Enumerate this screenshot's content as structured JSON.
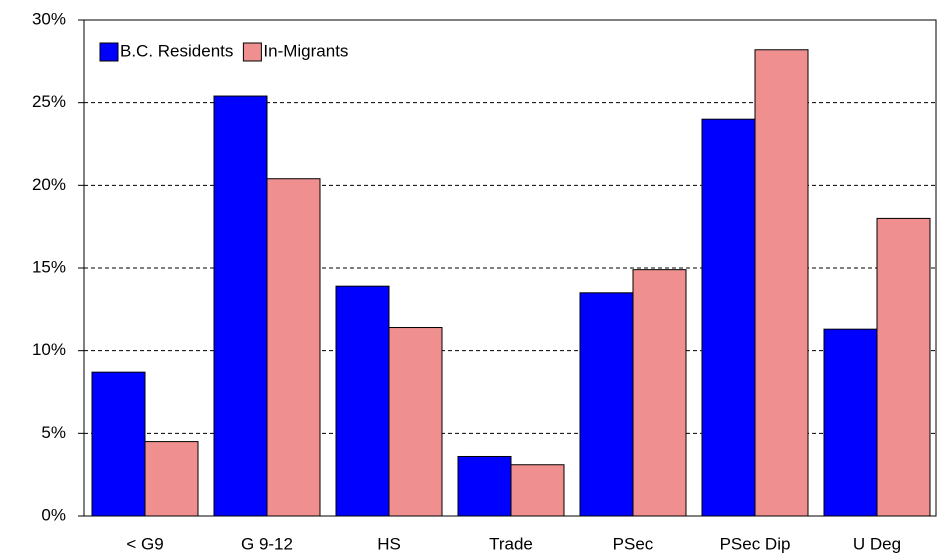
{
  "chart_data": {
    "type": "bar",
    "categories": [
      "< G9",
      "G 9-12",
      "HS",
      "Trade",
      "PSec",
      "PSec Dip",
      "U Deg"
    ],
    "series": [
      {
        "name": "B.C. Residents",
        "color": "#0000ff",
        "values": [
          8.7,
          25.4,
          13.9,
          3.6,
          13.5,
          24.0,
          11.3
        ]
      },
      {
        "name": "In-Migrants",
        "color": "#ef8f8f",
        "values": [
          4.5,
          20.4,
          11.4,
          3.1,
          14.9,
          28.2,
          18.0
        ]
      }
    ],
    "ylim": [
      0,
      30
    ],
    "yticks": [
      {
        "value": 0,
        "label": "0%"
      },
      {
        "value": 5,
        "label": "5%"
      },
      {
        "value": 10,
        "label": "10%"
      },
      {
        "value": 15,
        "label": "15%"
      },
      {
        "value": 20,
        "label": "20%"
      },
      {
        "value": 25,
        "label": "25%"
      },
      {
        "value": 30,
        "label": "30%"
      }
    ],
    "grid": true,
    "legend": "upper left"
  }
}
